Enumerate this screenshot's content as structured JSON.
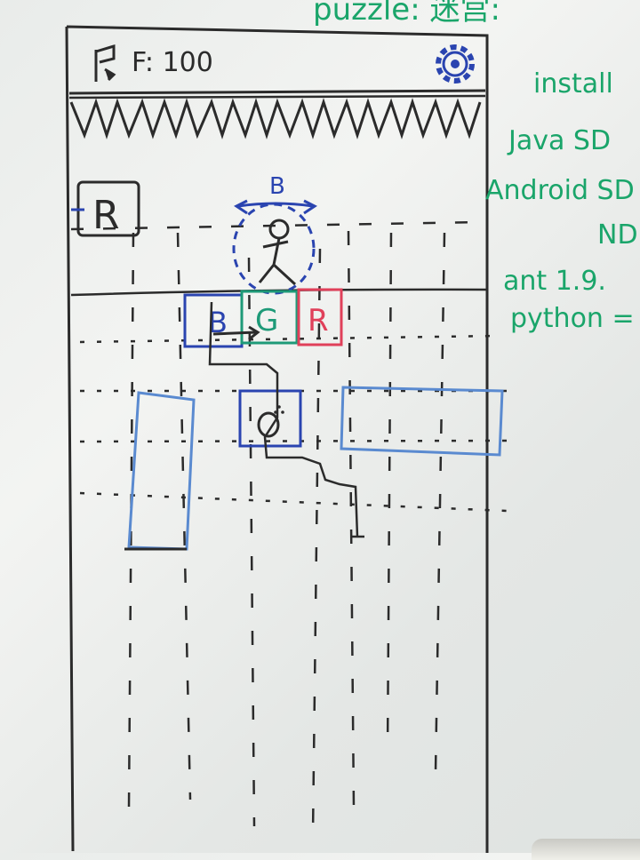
{
  "phone": {
    "hud": {
      "score_icon": "flag-icon",
      "score_text": "F: 100",
      "settings_icon": "gear-icon"
    },
    "hazard": "spike-row",
    "left_block_label": "R",
    "player": {
      "direction_label": "B",
      "icon": "stick-figure-icon"
    },
    "colored_blocks": [
      {
        "label": "B",
        "color": "#2a44b0"
      },
      {
        "label": "G",
        "color": "#1e9a78"
      },
      {
        "label": "R",
        "color": "#e0405a"
      }
    ],
    "target_icon": "zero-circle-icon"
  },
  "whiteboard_notes": {
    "lines": [
      "puzzle: 迷宫:",
      "install",
      "Java SD",
      "Android SD",
      "ND",
      "ant 1.9.",
      "python ="
    ],
    "color": "#1aa56a"
  },
  "colors": {
    "marker_black": "#2b2b2b",
    "marker_blue": "#2a44b0",
    "marker_light_blue": "#5a8ad0",
    "marker_green": "#1e9a78",
    "marker_red": "#e0405a"
  }
}
